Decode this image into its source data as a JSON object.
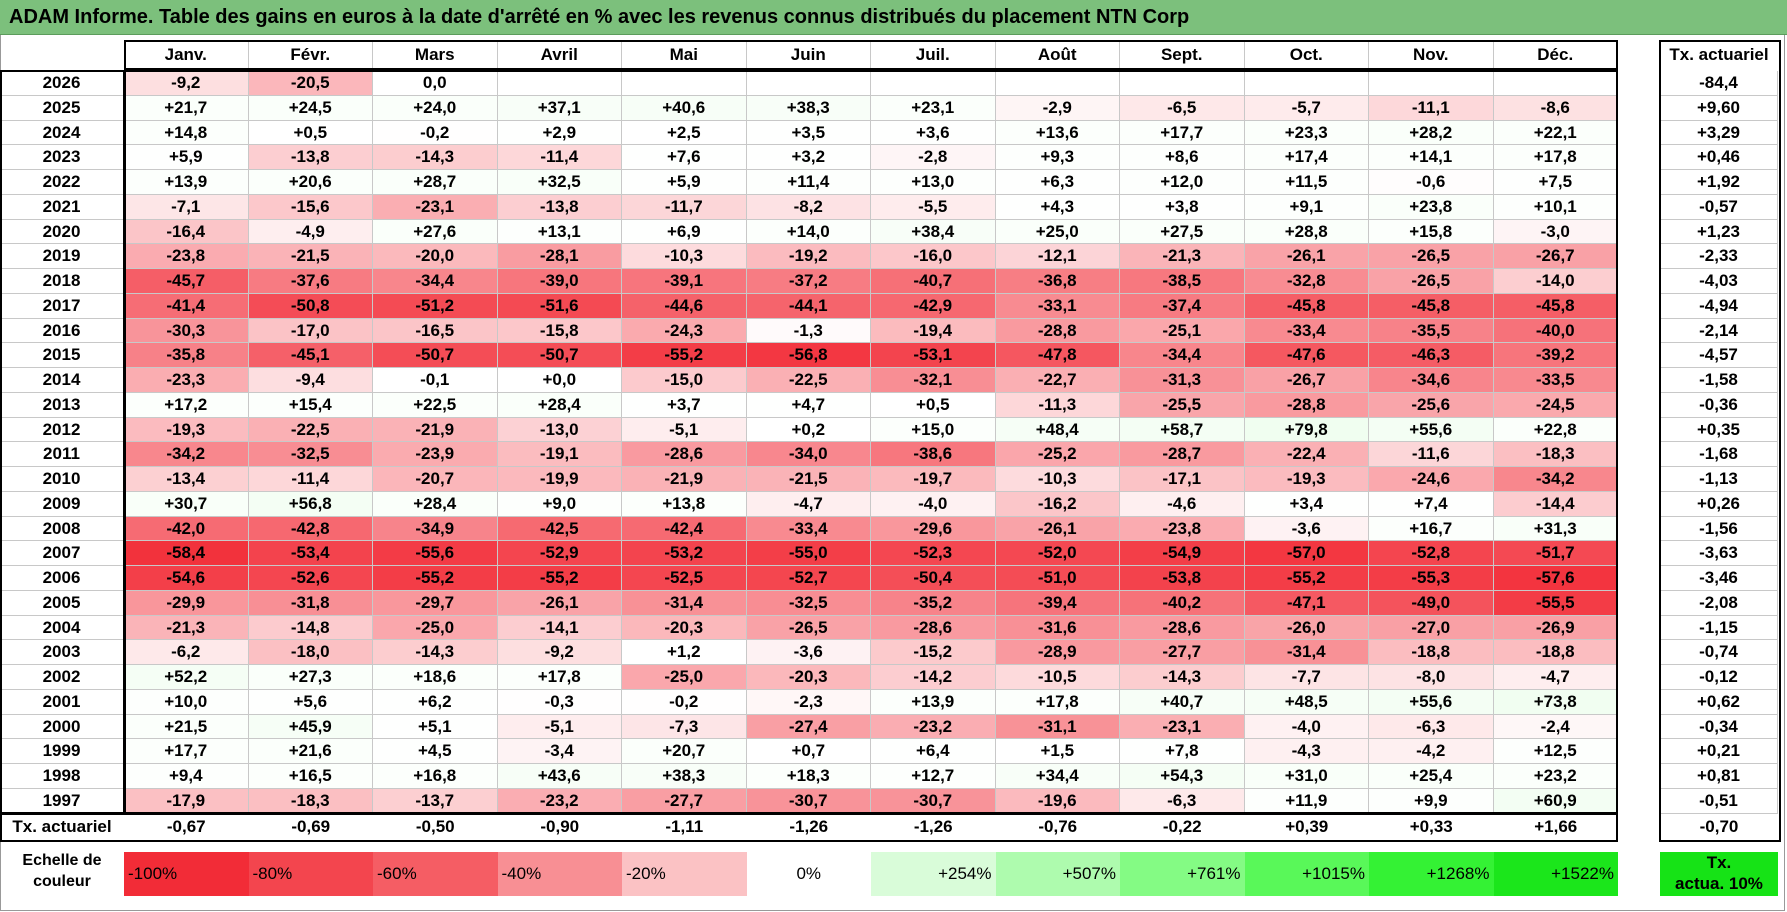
{
  "title": "ADAM Informe. Table des gains en euros à la date d'arrêté en % avec les revenus connus distribués du placement NTN Corp",
  "months": [
    "Janv.",
    "Févr.",
    "Mars",
    "Avril",
    "Mai",
    "Juin",
    "Juil.",
    "Août",
    "Sept.",
    "Oct.",
    "Nov.",
    "Déc."
  ],
  "actuarial_header": "Tx. actuariel",
  "rows": [
    {
      "year": "2026",
      "values": [
        "-9,2",
        "-20,5",
        "0,0",
        "",
        "",
        "",
        "",
        "",
        "",
        "",
        "",
        ""
      ],
      "actuarial": "-84,4"
    },
    {
      "year": "2025",
      "values": [
        "+21,7",
        "+24,5",
        "+24,0",
        "+37,1",
        "+40,6",
        "+38,3",
        "+23,1",
        "-2,9",
        "-6,5",
        "-5,7",
        "-11,1",
        "-8,6"
      ],
      "actuarial": "+9,60"
    },
    {
      "year": "2024",
      "values": [
        "+14,8",
        "+0,5",
        "-0,2",
        "+2,9",
        "+2,5",
        "+3,5",
        "+3,6",
        "+13,6",
        "+17,7",
        "+23,3",
        "+28,2",
        "+22,1"
      ],
      "actuarial": "+3,29"
    },
    {
      "year": "2023",
      "values": [
        "+5,9",
        "-13,8",
        "-14,3",
        "-11,4",
        "+7,6",
        "+3,2",
        "-2,8",
        "+9,3",
        "+8,6",
        "+17,4",
        "+14,1",
        "+17,8"
      ],
      "actuarial": "+0,46"
    },
    {
      "year": "2022",
      "values": [
        "+13,9",
        "+20,6",
        "+28,7",
        "+32,5",
        "+5,9",
        "+11,4",
        "+13,0",
        "+6,3",
        "+12,0",
        "+11,5",
        "-0,6",
        "+7,5"
      ],
      "actuarial": "+1,92"
    },
    {
      "year": "2021",
      "values": [
        "-7,1",
        "-15,6",
        "-23,1",
        "-13,8",
        "-11,7",
        "-8,2",
        "-5,5",
        "+4,3",
        "+3,8",
        "+9,1",
        "+23,8",
        "+10,1"
      ],
      "actuarial": "-0,57"
    },
    {
      "year": "2020",
      "values": [
        "-16,4",
        "-4,9",
        "+27,6",
        "+13,1",
        "+6,9",
        "+14,0",
        "+38,4",
        "+25,0",
        "+27,5",
        "+28,8",
        "+15,8",
        "-3,0"
      ],
      "actuarial": "+1,23"
    },
    {
      "year": "2019",
      "values": [
        "-23,8",
        "-21,5",
        "-20,0",
        "-28,1",
        "-10,3",
        "-19,2",
        "-16,0",
        "-12,1",
        "-21,3",
        "-26,1",
        "-26,5",
        "-26,7"
      ],
      "actuarial": "-2,33"
    },
    {
      "year": "2018",
      "values": [
        "-45,7",
        "-37,6",
        "-34,4",
        "-39,0",
        "-39,1",
        "-37,2",
        "-40,7",
        "-36,8",
        "-38,5",
        "-32,8",
        "-26,5",
        "-14,0"
      ],
      "actuarial": "-4,03"
    },
    {
      "year": "2017",
      "values": [
        "-41,4",
        "-50,8",
        "-51,2",
        "-51,6",
        "-44,6",
        "-44,1",
        "-42,9",
        "-33,1",
        "-37,4",
        "-45,8",
        "-45,8",
        "-45,8"
      ],
      "actuarial": "-4,94"
    },
    {
      "year": "2016",
      "values": [
        "-30,3",
        "-17,0",
        "-16,5",
        "-15,8",
        "-24,3",
        "-1,3",
        "-19,4",
        "-28,8",
        "-25,1",
        "-33,4",
        "-35,5",
        "-40,0"
      ],
      "actuarial": "-2,14"
    },
    {
      "year": "2015",
      "values": [
        "-35,8",
        "-45,1",
        "-50,7",
        "-50,7",
        "-55,2",
        "-56,8",
        "-53,1",
        "-47,8",
        "-34,4",
        "-47,6",
        "-46,3",
        "-39,2"
      ],
      "actuarial": "-4,57"
    },
    {
      "year": "2014",
      "values": [
        "-23,3",
        "-9,4",
        "-0,1",
        "+0,0",
        "-15,0",
        "-22,5",
        "-32,1",
        "-22,7",
        "-31,3",
        "-26,7",
        "-34,6",
        "-33,5"
      ],
      "actuarial": "-1,58"
    },
    {
      "year": "2013",
      "values": [
        "+17,2",
        "+15,4",
        "+22,5",
        "+28,4",
        "+3,7",
        "+4,7",
        "+0,5",
        "-11,3",
        "-25,5",
        "-28,8",
        "-25,6",
        "-24,5"
      ],
      "actuarial": "-0,36"
    },
    {
      "year": "2012",
      "values": [
        "-19,3",
        "-22,5",
        "-21,9",
        "-13,0",
        "-5,1",
        "+0,2",
        "+15,0",
        "+48,4",
        "+58,7",
        "+79,8",
        "+55,6",
        "+22,8"
      ],
      "actuarial": "+0,35"
    },
    {
      "year": "2011",
      "values": [
        "-34,2",
        "-32,5",
        "-23,9",
        "-19,1",
        "-28,6",
        "-34,0",
        "-38,6",
        "-25,2",
        "-28,7",
        "-22,4",
        "-11,6",
        "-18,3"
      ],
      "actuarial": "-1,68"
    },
    {
      "year": "2010",
      "values": [
        "-13,4",
        "-11,4",
        "-20,7",
        "-19,9",
        "-21,9",
        "-21,5",
        "-19,7",
        "-10,3",
        "-17,1",
        "-19,3",
        "-24,6",
        "-34,2"
      ],
      "actuarial": "-1,13"
    },
    {
      "year": "2009",
      "values": [
        "+30,7",
        "+56,8",
        "+28,4",
        "+9,0",
        "+13,8",
        "-4,7",
        "-4,0",
        "-16,2",
        "-4,6",
        "+3,4",
        "+7,4",
        "-14,4"
      ],
      "actuarial": "+0,26"
    },
    {
      "year": "2008",
      "values": [
        "-42,0",
        "-42,8",
        "-34,9",
        "-42,5",
        "-42,4",
        "-33,4",
        "-29,6",
        "-26,1",
        "-23,8",
        "-3,6",
        "+16,7",
        "+31,3"
      ],
      "actuarial": "-1,56"
    },
    {
      "year": "2007",
      "values": [
        "-58,4",
        "-53,4",
        "-55,6",
        "-52,9",
        "-53,2",
        "-55,0",
        "-52,3",
        "-52,0",
        "-54,9",
        "-57,0",
        "-52,8",
        "-51,7"
      ],
      "actuarial": "-3,63"
    },
    {
      "year": "2006",
      "values": [
        "-54,6",
        "-52,6",
        "-55,2",
        "-55,2",
        "-52,5",
        "-52,7",
        "-50,4",
        "-51,0",
        "-53,8",
        "-55,2",
        "-55,3",
        "-57,6"
      ],
      "actuarial": "-3,46"
    },
    {
      "year": "2005",
      "values": [
        "-29,9",
        "-31,8",
        "-29,7",
        "-26,1",
        "-31,4",
        "-32,5",
        "-35,2",
        "-39,4",
        "-40,2",
        "-47,1",
        "-49,0",
        "-55,5"
      ],
      "actuarial": "-2,08"
    },
    {
      "year": "2004",
      "values": [
        "-21,3",
        "-14,8",
        "-25,0",
        "-14,1",
        "-20,3",
        "-26,5",
        "-28,6",
        "-31,6",
        "-28,6",
        "-26,0",
        "-27,0",
        "-26,9"
      ],
      "actuarial": "-1,15"
    },
    {
      "year": "2003",
      "values": [
        "-6,2",
        "-18,0",
        "-14,3",
        "-9,2",
        "+1,2",
        "-3,6",
        "-15,2",
        "-28,9",
        "-27,7",
        "-31,4",
        "-18,8",
        "-18,8"
      ],
      "actuarial": "-0,74"
    },
    {
      "year": "2002",
      "values": [
        "+52,2",
        "+27,3",
        "+18,6",
        "+17,8",
        "-25,0",
        "-20,3",
        "-14,2",
        "-10,5",
        "-14,3",
        "-7,7",
        "-8,0",
        "-4,7"
      ],
      "actuarial": "-0,12"
    },
    {
      "year": "2001",
      "values": [
        "+10,0",
        "+5,6",
        "+6,2",
        "-0,3",
        "-0,2",
        "-2,3",
        "+13,9",
        "+17,8",
        "+40,7",
        "+48,5",
        "+55,6",
        "+73,8"
      ],
      "actuarial": "+0,62"
    },
    {
      "year": "2000",
      "values": [
        "+21,5",
        "+45,9",
        "+5,1",
        "-5,1",
        "-7,3",
        "-27,4",
        "-23,2",
        "-31,1",
        "-23,1",
        "-4,0",
        "-6,3",
        "-2,4"
      ],
      "actuarial": "-0,34"
    },
    {
      "year": "1999",
      "values": [
        "+17,7",
        "+21,6",
        "+4,5",
        "-3,4",
        "+20,7",
        "+0,7",
        "+6,4",
        "+1,5",
        "+7,8",
        "-4,3",
        "-4,2",
        "+12,5"
      ],
      "actuarial": "+0,21"
    },
    {
      "year": "1998",
      "values": [
        "+9,4",
        "+16,5",
        "+16,8",
        "+43,6",
        "+38,3",
        "+18,3",
        "+12,7",
        "+34,4",
        "+54,3",
        "+31,0",
        "+25,4",
        "+23,2"
      ],
      "actuarial": "+0,81"
    },
    {
      "year": "1997",
      "values": [
        "-17,9",
        "-18,3",
        "-13,7",
        "-23,2",
        "-27,7",
        "-30,7",
        "-30,7",
        "-19,6",
        "-6,3",
        "+11,9",
        "+9,9",
        "+60,9"
      ],
      "actuarial": "-0,51"
    }
  ],
  "footer": {
    "label": "Tx. actuariel",
    "values": [
      "-0,67",
      "-0,69",
      "-0,50",
      "-0,90",
      "-1,11",
      "-1,26",
      "-1,26",
      "-0,76",
      "-0,22",
      "+0,39",
      "+0,33",
      "+1,66"
    ],
    "total": "-0,70"
  },
  "scale": {
    "label_line1": "Echelle de",
    "label_line2": "couleur",
    "items": [
      {
        "text": "-100%",
        "color": "#f22c37",
        "align": "left"
      },
      {
        "text": "-80%",
        "color": "#f3454e",
        "align": "left"
      },
      {
        "text": "-60%",
        "color": "#f55d64",
        "align": "left"
      },
      {
        "text": "-40%",
        "color": "#f88f94",
        "align": "left"
      },
      {
        "text": "-20%",
        "color": "#fbc2c4",
        "align": "left"
      },
      {
        "text": "0%",
        "color": "#ffffff",
        "align": "center"
      },
      {
        "text": "+254%",
        "color": "#d9fcd9",
        "align": "right"
      },
      {
        "text": "+507%",
        "color": "#aefbae",
        "align": "right"
      },
      {
        "text": "+761%",
        "color": "#84fb84",
        "align": "right"
      },
      {
        "text": "+1015%",
        "color": "#59f859",
        "align": "right"
      },
      {
        "text": "+1268%",
        "color": "#34f234",
        "align": "right"
      },
      {
        "text": "+1522%",
        "color": "#1be61b",
        "align": "right"
      }
    ],
    "legend_line1": "Tx.",
    "legend_line2": "actua. 10%",
    "legend_color": "#16e316"
  }
}
